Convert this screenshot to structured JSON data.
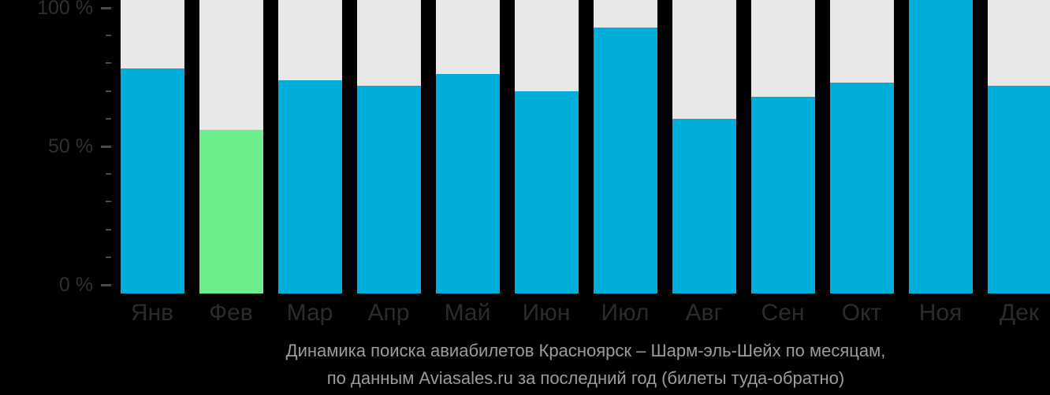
{
  "chart_data": {
    "type": "bar",
    "categories": [
      "Янв",
      "Фев",
      "Мар",
      "Апр",
      "Май",
      "Июн",
      "Июл",
      "Авг",
      "Сен",
      "Окт",
      "Ноя",
      "Дек"
    ],
    "values": [
      78,
      56,
      74,
      72,
      76,
      70,
      93,
      60,
      68,
      73,
      100,
      72
    ],
    "unit": "%",
    "highlight_index": 1,
    "title_line1": "Динамика поиска авиабилетов Красноярск – Шарм-эль-Шейх по месяцам,",
    "title_line2": "по данным Aviasales.ru за последний год (билеты туда-обратно)",
    "title": "Динамика поиска авиабилетов Красноярск – Шарм-эль-Шейх по месяцам, по данным Aviasales.ru за последний год (билеты туда-обратно)",
    "xlabel": "",
    "ylabel": "",
    "ylim": [
      0,
      100
    ],
    "yticks": [
      {
        "value": 0,
        "label": "0 %"
      },
      {
        "value": 50,
        "label": "50 %"
      },
      {
        "value": 100,
        "label": "100 %"
      }
    ],
    "minor_tick_step": 10,
    "grid": "off",
    "legend": "none",
    "colors": {
      "background": "#000000",
      "bar": "#00AEDC",
      "bar_highlight": "#6CEE8C",
      "bar_track": "#E8E8E8",
      "axis_label": "#2E2E2E",
      "month_label": "#2B2B2B",
      "tick": "#4A4A4A",
      "title": "#9B9B9B"
    }
  }
}
